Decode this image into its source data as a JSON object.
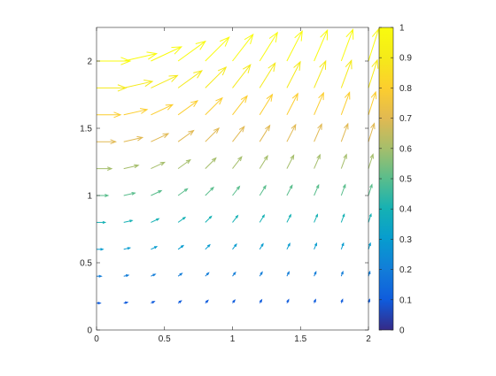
{
  "chart_data": {
    "type": "quiver",
    "title": "",
    "xlabel": "",
    "ylabel": "",
    "xlim": [
      0,
      2
    ],
    "ylim": [
      0,
      2.25
    ],
    "x_ticks": [
      0,
      0.5,
      1,
      1.5,
      2
    ],
    "y_ticks": [
      0,
      0.5,
      1,
      1.5,
      2
    ],
    "x_tick_labels": [
      "0",
      "0.5",
      "1",
      "1.5",
      "2"
    ],
    "y_tick_labels": [
      "0",
      "0.5",
      "1",
      "1.5",
      "2"
    ],
    "grid": false,
    "colormap": "parula",
    "colorbar": {
      "position": "right",
      "range": [
        0,
        1
      ],
      "ticks": [
        0,
        0.1,
        0.2,
        0.3,
        0.4,
        0.5,
        0.6,
        0.7,
        0.8,
        0.9,
        1
      ],
      "tick_labels": [
        "0",
        "0.1",
        "0.2",
        "0.3",
        "0.4",
        "0.5",
        "0.6",
        "0.7",
        "0.8",
        "0.9",
        "1"
      ]
    },
    "field": {
      "x_start": 0,
      "x_step": 0.2,
      "x_count": 11,
      "y_start": 0.2,
      "y_step": 0.2,
      "y_count": 10,
      "vector_rule": "u = y^2 / 20 / (1 + x^2), v = x * y^2 / 20, arrow scaled to y^2 / 20",
      "color_value_rule": "y / 2 (clamped 0-1)"
    }
  }
}
